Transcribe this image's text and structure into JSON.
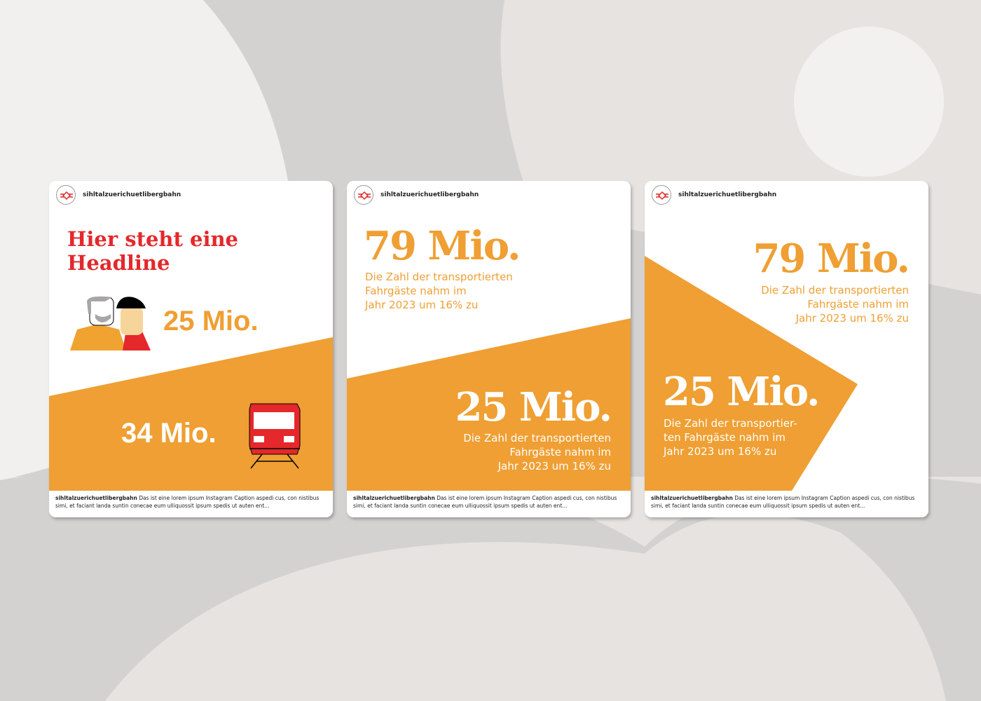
{
  "colors": {
    "orange": "#ef9f33",
    "red": "#e4282b",
    "background": "#e6e3e1"
  },
  "account": "sihltalzuerichuetlibergbahn",
  "caption": "Das ist eine lorem ipsum Instagram Caption aspedi cus, con nistibus simi, et faciant landa suntin conecae eum ulliquossit ipsum spedis ut auten ent...",
  "cards": [
    {
      "headline_1": "Hier steht eine",
      "headline_2": "Headline",
      "stat_top": "25 Mio.",
      "stat_bottom": "34 Mio.",
      "icons": [
        "people-illustration",
        "train-icon"
      ]
    },
    {
      "stat_top": "79 Mio.",
      "text_top": [
        "Die Zahl der transportierten",
        "Fahrgäste nahm im",
        "Jahr 2023 um 16% zu"
      ],
      "stat_bottom": "25 Mio.",
      "text_bottom": [
        "Die Zahl der transportierten",
        "Fahrgäste nahm im",
        "Jahr 2023 um 16% zu"
      ]
    },
    {
      "stat_top": "79 Mio.",
      "text_top": [
        "Die Zahl der transportierten",
        "Fahrgäste nahm im",
        "Jahr 2023 um 16% zu"
      ],
      "stat_bottom": "25 Mio.",
      "text_bottom": [
        "Die Zahl der transportier-",
        "ten Fahrgäste nahm im",
        "Jahr 2023 um 16% zu"
      ]
    }
  ]
}
